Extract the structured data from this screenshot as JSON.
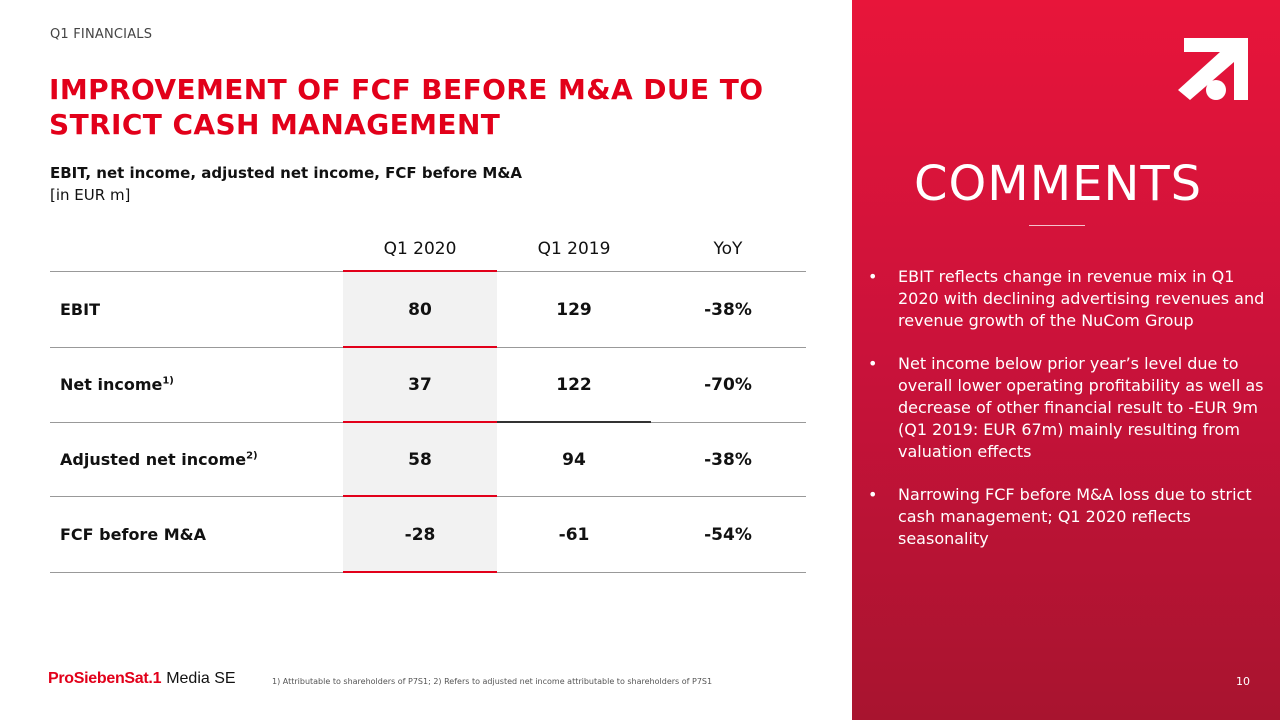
{
  "header": {
    "kicker": "Q1 FINANCIALS",
    "title": "IMPROVEMENT OF FCF BEFORE M&A DUE TO STRICT CASH MANAGEMENT",
    "subtitle": "EBIT, net income, adjusted net income, FCF before M&A",
    "unit": "[in EUR m]"
  },
  "table": {
    "columns": [
      "Q1 2020",
      "Q1 2019",
      "YoY"
    ],
    "rows": [
      {
        "label": "EBIT",
        "sup": "",
        "q1_2020": "80",
        "q1_2019": "129",
        "yoy": "-38%"
      },
      {
        "label": "Net income",
        "sup": "1)",
        "q1_2020": "37",
        "q1_2019": "122",
        "yoy": "-70%"
      },
      {
        "label": "Adjusted net income",
        "sup": "2)",
        "q1_2020": "58",
        "q1_2019": "94",
        "yoy": "-38%"
      },
      {
        "label": "FCF before M&A",
        "sup": "",
        "q1_2020": "-28",
        "q1_2019": "-61",
        "yoy": "-54%"
      }
    ]
  },
  "comments": {
    "title": "COMMENTS",
    "bullets": [
      "EBIT reflects change in revenue mix in Q1 2020 with declining advertising revenues and revenue growth of the NuCom Group",
      "Net income below prior year’s level due to overall lower operating profitability as well as decrease of other financial result to -EUR 9m (Q1 2019: EUR 67m) mainly resulting from valuation effects",
      "Narrowing FCF before M&A loss due to strict cash management; Q1 2020 reflects seasonality"
    ]
  },
  "footer": {
    "logo_brand": "ProSiebenSat.1",
    "logo_rest": "Media SE",
    "footnote": "1) Attributable to shareholders of P7S1; 2) Refers to adjusted net income attributable to shareholders of P7S1",
    "page_number": "10"
  },
  "colors": {
    "accent": "#e2001a",
    "panel": "#d0123a"
  }
}
